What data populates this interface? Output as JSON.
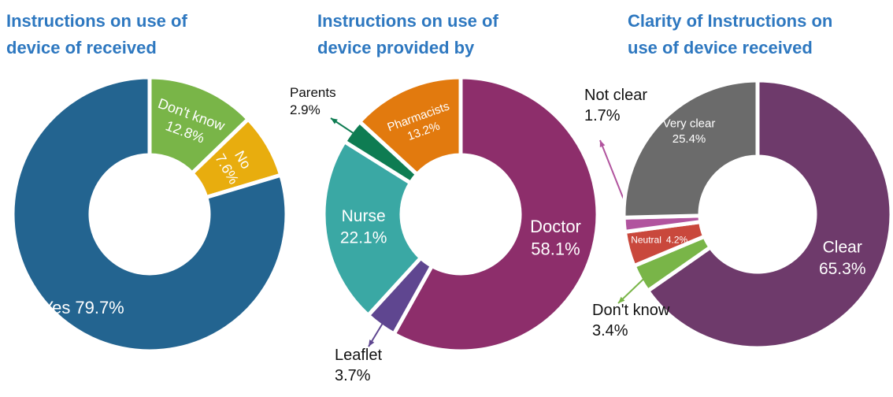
{
  "chart_data": [
    {
      "type": "pie",
      "title": "Instructions on use of device of received",
      "categories": [
        "Don't know",
        "No",
        "Yes"
      ],
      "values": [
        12.8,
        7.6,
        79.7
      ],
      "value_labels": [
        "12.8%",
        "7.6%",
        "79.7%"
      ],
      "colors": [
        "#79b548",
        "#e8ad0e",
        "#236490"
      ]
    },
    {
      "type": "pie",
      "title": "Instructions on use of device provided by",
      "categories": [
        "Doctor",
        "Leaflet",
        "Nurse",
        "Parents",
        "Pharmacists"
      ],
      "values": [
        58.1,
        3.7,
        22.1,
        2.9,
        13.2
      ],
      "value_labels": [
        "58.1%",
        "3.7%",
        "22.1%",
        "2.9%",
        "13.2%"
      ],
      "colors": [
        "#8d2e6b",
        "#5f4690",
        "#3aa8a4",
        "#0e7c52",
        "#e27a0e"
      ]
    },
    {
      "type": "pie",
      "title": "Clarity of Instructions on use of device received",
      "categories": [
        "Clear",
        "Don't know",
        "Neutral",
        "Not clear",
        "Very clear"
      ],
      "values": [
        65.3,
        3.4,
        4.2,
        1.7,
        25.4
      ],
      "value_labels": [
        "65.3%",
        "3.4%",
        "4.2%",
        "1.7%",
        "25.4%"
      ],
      "colors": [
        "#6e3a6b",
        "#79b548",
        "#c9483c",
        "#b1549e",
        "#6b6b6b"
      ]
    }
  ]
}
